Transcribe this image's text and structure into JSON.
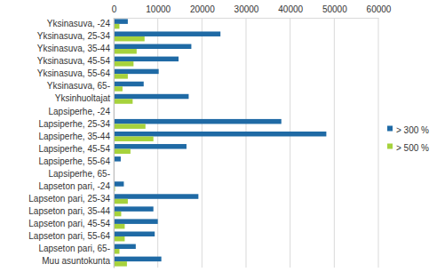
{
  "chart_data": {
    "type": "bar",
    "orientation": "horizontal",
    "grid": true,
    "legend": "right",
    "categories": [
      "Yksinasuva, -24",
      "Yksinasuva, 25-34",
      "Yksinasuva, 35-44",
      "Yksinasuva, 45-54",
      "Yksinasuva, 55-64",
      "Yksinasuva, 65-",
      "Yksinhuoltajat",
      "Lapsiperhe, -24",
      "Lapsiperhe, 25-34",
      "Lapsiperhe, 35-44",
      "Lapsiperhe, 45-54",
      "Lapsiperhe, 55-64",
      "Lapsiperhe, 65-",
      "Lapseton pari, -24",
      "Lapseton pari, 25-34",
      "Lapseton pari, 35-44",
      "Lapseton pari, 45-54",
      "Lapseton pari, 55-64",
      "Lapseton pari, 65-",
      "Muu asuntokunta"
    ],
    "series": [
      {
        "name": "> 300 %",
        "color": "#1f6aa5",
        "values": [
          3200,
          24200,
          17600,
          14700,
          10200,
          6800,
          17000,
          200,
          38000,
          48200,
          16500,
          1600,
          50,
          2300,
          19200,
          9000,
          10000,
          9300,
          5000,
          10800
        ]
      },
      {
        "name": "> 500 %",
        "color": "#a6d23c",
        "values": [
          1300,
          7000,
          5200,
          4500,
          3200,
          2000,
          4300,
          50,
          7200,
          9000,
          3800,
          200,
          0,
          300,
          3200,
          1700,
          2500,
          2500,
          1300,
          3000
        ]
      }
    ],
    "xlim": [
      0,
      60000
    ],
    "xticks": [
      0,
      10000,
      20000,
      30000,
      40000,
      50000,
      60000
    ]
  }
}
